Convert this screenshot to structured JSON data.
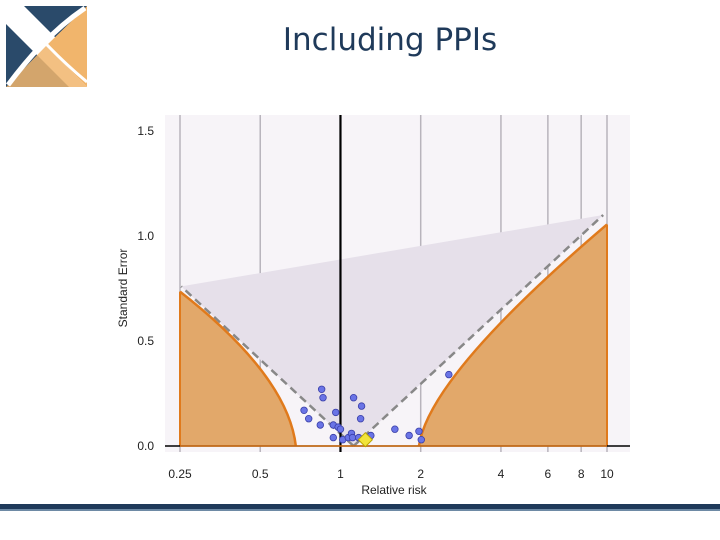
{
  "slide": {
    "title": "Including PPIs",
    "logo_icon": "x-cross-logo-icon",
    "accent_colors": {
      "navy": "#1f3a5a",
      "orange": "#e07a1c",
      "orange_fill": "#e2a86a"
    }
  },
  "chart_data": {
    "type": "scatter",
    "title": "",
    "xlabel": "Relative risk",
    "ylabel": "Standard Error",
    "x_scale": "log",
    "xlim": [
      0.25,
      10
    ],
    "ylim": [
      0,
      1.5
    ],
    "x_ticks": [
      0.25,
      0.5,
      1,
      2,
      4,
      6,
      8,
      10
    ],
    "x_tick_labels": [
      "0.25",
      "0.5",
      "1",
      "2",
      "4",
      "6",
      "8",
      "10"
    ],
    "y_ticks": [
      0,
      0.5,
      1.0,
      1.5
    ],
    "y_tick_labels": [
      "0.0",
      "0.5",
      "1.0",
      "1.5"
    ],
    "grid": "vertical lines at x ticks",
    "null_line_x": 1,
    "studies": [
      {
        "rr": 0.73,
        "se": 0.17
      },
      {
        "rr": 0.76,
        "se": 0.13
      },
      {
        "rr": 0.85,
        "se": 0.27
      },
      {
        "rr": 0.84,
        "se": 0.1
      },
      {
        "rr": 0.86,
        "se": 0.23
      },
      {
        "rr": 0.94,
        "se": 0.1
      },
      {
        "rr": 0.94,
        "se": 0.04
      },
      {
        "rr": 0.96,
        "se": 0.16
      },
      {
        "rr": 0.98,
        "se": 0.09
      },
      {
        "rr": 1.0,
        "se": 0.08
      },
      {
        "rr": 1.02,
        "se": 0.03
      },
      {
        "rr": 1.07,
        "se": 0.04
      },
      {
        "rr": 1.1,
        "se": 0.06
      },
      {
        "rr": 1.11,
        "se": 0.04
      },
      {
        "rr": 1.12,
        "se": 0.23
      },
      {
        "rr": 1.17,
        "se": 0.04
      },
      {
        "rr": 1.19,
        "se": 0.13
      },
      {
        "rr": 1.2,
        "se": 0.19
      },
      {
        "rr": 1.3,
        "se": 0.05
      },
      {
        "rr": 1.6,
        "se": 0.08
      },
      {
        "rr": 1.81,
        "se": 0.05
      },
      {
        "rr": 1.97,
        "se": 0.07
      },
      {
        "rr": 2.01,
        "se": 0.03
      },
      {
        "rr": 2.55,
        "se": 0.34
      }
    ],
    "pooled_estimate": {
      "rr": 1.24,
      "se": 0.03
    },
    "pseudo_ci_funnel": {
      "center_rr": 1.12,
      "z": 1.96,
      "se_max": 1.15
    },
    "significance_contours": {
      "left_point_0": {
        "rr": 0.68,
        "se": 0.0
      },
      "left_point_top": {
        "rr": 0.25,
        "se": 0.735
      },
      "right_point_0": {
        "rr": 1.97,
        "se": 0.0
      },
      "right_point_top": {
        "rr": 10,
        "se": 1.055
      }
    }
  }
}
